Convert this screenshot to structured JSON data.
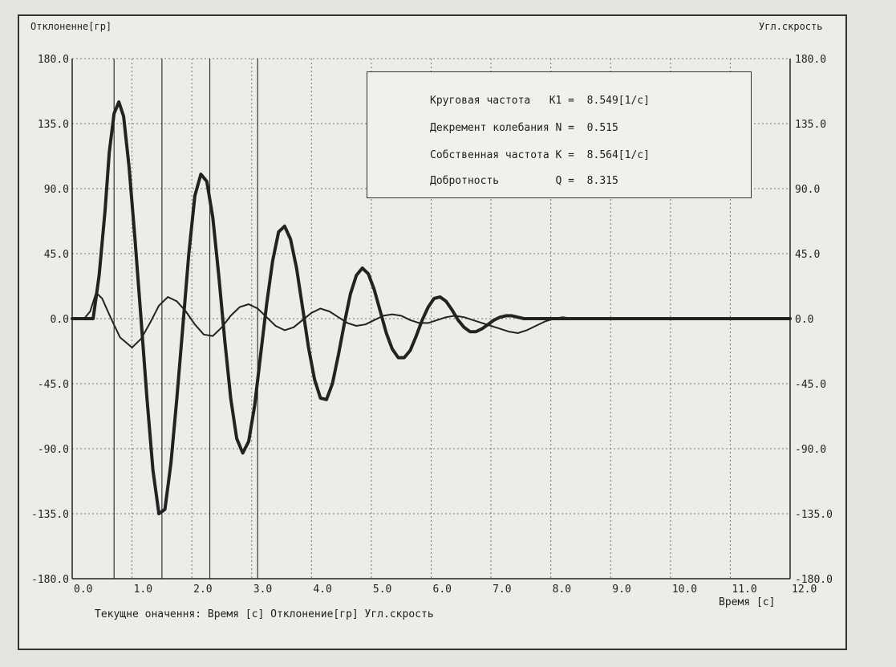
{
  "labels": {
    "y_left_title": "Отклоненне[гр]",
    "y_right_title": "Угл.скрость",
    "x_title": "Время [с]",
    "current_values": "Текущне оначення:  Время [с] Отклонение[гр] Угл.скрость"
  },
  "params": [
    {
      "text": "Круговая частота   K1 =  8.549[1/с]"
    },
    {
      "text": "Декремент колебания N =  0.515"
    },
    {
      "text": "Собственная частота K =  8.564[1/с]"
    },
    {
      "text": "Добротность         Q =  8.315"
    }
  ],
  "chart_data": {
    "type": "line",
    "title": "",
    "xlabel": "Время [с]",
    "ylabel": "Отклоненне[гр]",
    "ylabel_right": "Угл.скрость",
    "xlim": [
      0,
      12
    ],
    "ylim": [
      -180,
      180
    ],
    "grid": true,
    "x_ticks": [
      0,
      1,
      2,
      3,
      4,
      5,
      6,
      7,
      8,
      9,
      10,
      11,
      12
    ],
    "x_tick_labels": [
      "0.0",
      "1.0",
      "2.0",
      "3.0",
      "4.0",
      "5.0",
      "6.0",
      "7.0",
      "8.0",
      "9.0",
      "10.0",
      "11.0",
      "12.0"
    ],
    "y_ticks": [
      180,
      135,
      90,
      45,
      0,
      -45,
      -90,
      -135,
      -180
    ],
    "y_tick_labels": [
      "180.0",
      "135.0",
      "90.0",
      "45.0",
      "0.0",
      "-45.0",
      "-90.0",
      "-135.0",
      "-180.0"
    ],
    "y_tick_labels_right": [
      "180.0",
      "135.0",
      "90.0",
      "45.0",
      "0.0",
      "-45.0",
      "-90.0",
      "-135.0",
      "-180.0"
    ],
    "markers_x": [
      0.7,
      1.5,
      2.3,
      3.1
    ],
    "series": [
      {
        "style": "thick",
        "x": [
          0,
          0.35,
          0.45,
          0.55,
          0.62,
          0.7,
          0.78,
          0.86,
          0.95,
          1.05,
          1.15,
          1.25,
          1.35,
          1.45,
          1.55,
          1.65,
          1.75,
          1.85,
          1.95,
          2.05,
          2.15,
          2.25,
          2.35,
          2.45,
          2.55,
          2.65,
          2.75,
          2.85,
          2.95,
          3.05,
          3.15,
          3.25,
          3.35,
          3.45,
          3.55,
          3.65,
          3.75,
          3.85,
          3.95,
          4.05,
          4.15,
          4.25,
          4.35,
          4.45,
          4.55,
          4.65,
          4.75,
          4.85,
          4.95,
          5.05,
          5.15,
          5.25,
          5.35,
          5.45,
          5.55,
          5.65,
          5.75,
          5.85,
          5.95,
          6.05,
          6.15,
          6.25,
          6.35,
          6.45,
          6.55,
          6.65,
          6.75,
          6.85,
          6.95,
          7.05,
          7.15,
          7.25,
          7.35,
          7.45,
          7.55,
          7.65,
          7.75,
          7.85,
          7.95,
          8.05,
          8.15,
          8.25,
          8.35,
          8.5,
          9.0,
          12.0
        ],
        "y": [
          0,
          0,
          30,
          75,
          115,
          142,
          150,
          140,
          105,
          55,
          0,
          -55,
          -105,
          -135,
          -132,
          -100,
          -55,
          -5,
          45,
          85,
          100,
          95,
          70,
          30,
          -15,
          -55,
          -83,
          -93,
          -85,
          -60,
          -25,
          10,
          40,
          60,
          64,
          55,
          35,
          8,
          -20,
          -42,
          -55,
          -56,
          -45,
          -25,
          -3,
          17,
          30,
          35,
          31,
          20,
          5,
          -10,
          -21,
          -27,
          -27,
          -22,
          -12,
          -1,
          8,
          14,
          15,
          12,
          6,
          -1,
          -6,
          -9,
          -9,
          -7,
          -4,
          -1,
          1,
          2,
          2,
          1,
          0,
          0,
          0,
          0,
          0,
          0,
          0,
          0,
          0,
          0,
          0,
          0
        ]
      },
      {
        "style": "thin",
        "x": [
          0,
          0.2,
          0.3,
          0.4,
          0.5,
          0.65,
          0.8,
          1.0,
          1.15,
          1.3,
          1.45,
          1.6,
          1.75,
          1.9,
          2.05,
          2.2,
          2.35,
          2.5,
          2.65,
          2.8,
          2.95,
          3.1,
          3.25,
          3.4,
          3.55,
          3.7,
          3.85,
          4.0,
          4.15,
          4.3,
          4.45,
          4.6,
          4.75,
          4.9,
          5.05,
          5.2,
          5.35,
          5.5,
          5.65,
          5.8,
          5.95,
          6.1,
          6.25,
          6.4,
          6.55,
          6.7,
          6.85,
          7.0,
          7.15,
          7.3,
          7.45,
          7.6,
          7.75,
          7.9,
          8.05,
          8.2,
          8.35,
          8.5,
          9.0,
          12.0
        ],
        "y": [
          0,
          0,
          5,
          18,
          14,
          0,
          -13,
          -20,
          -14,
          -3,
          9,
          15,
          12,
          5,
          -4,
          -11,
          -12,
          -6,
          2,
          8,
          10,
          7,
          1,
          -5,
          -8,
          -6,
          -1,
          4,
          7,
          5,
          1,
          -3,
          -5,
          -4,
          -1,
          2,
          3,
          2,
          -1,
          -3,
          -3,
          -1,
          1,
          2,
          1,
          -1,
          -3,
          -5,
          -7,
          -9,
          -10,
          -8,
          -5,
          -2,
          0,
          1,
          0,
          0,
          0,
          0
        ]
      }
    ]
  }
}
